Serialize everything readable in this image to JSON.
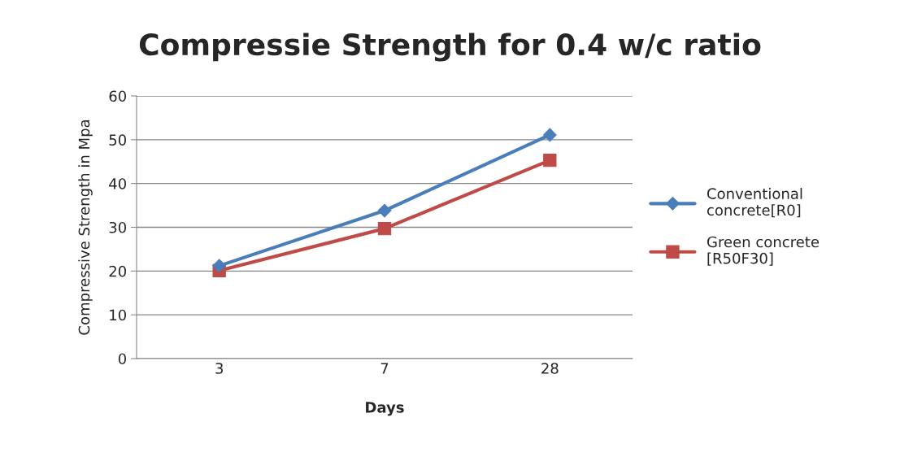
{
  "chart_data": {
    "type": "line",
    "title": "Compressie Strength for 0.4 w/c ratio",
    "xlabel": "Days",
    "ylabel": "Compressive Strength in Mpa",
    "categories": [
      "3",
      "7",
      "28"
    ],
    "series": [
      {
        "name": "Conventional\nconcrete[R0]",
        "color": "#4a7ebb",
        "marker": "diamond",
        "values": [
          21.2,
          33.8,
          51.1
        ]
      },
      {
        "name": "Green concrete\n[R50F30]",
        "color": "#be4b48",
        "marker": "square",
        "values": [
          20.1,
          29.7,
          45.3
        ]
      }
    ],
    "ylim": [
      0,
      60
    ],
    "yticks": [
      0,
      10,
      20,
      30,
      40,
      50,
      60
    ],
    "grid": "y",
    "legend": "right",
    "line_style": "solid"
  }
}
